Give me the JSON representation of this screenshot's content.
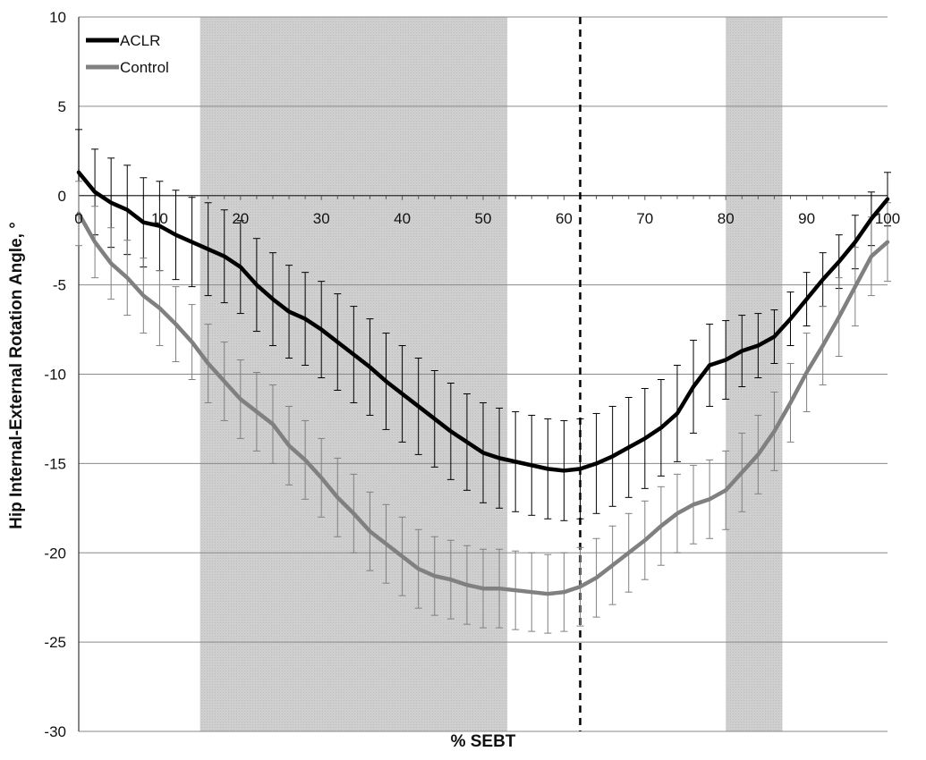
{
  "chart_data": {
    "type": "line",
    "title": "",
    "xlabel": "% SEBT",
    "ylabel": "Hip Internal-External Rotation Angle, °",
    "xlim": [
      0,
      100
    ],
    "ylim": [
      -30,
      10
    ],
    "x_ticks": [
      0,
      10,
      20,
      30,
      40,
      50,
      60,
      70,
      80,
      90,
      100
    ],
    "y_ticks": [
      10,
      5,
      0,
      -5,
      -10,
      -15,
      -20,
      -25,
      -30
    ],
    "y_tick_labels": [
      "10",
      "5",
      "0",
      "-5",
      "-10",
      "-15",
      "-20",
      "-25",
      "-30"
    ],
    "x_tick_labels": [
      "0",
      "10",
      "20",
      "30",
      "40",
      "50",
      "60",
      "70",
      "80",
      "90",
      "100"
    ],
    "grid": "horizontal",
    "legend_position": "top-left",
    "shaded_regions": [
      [
        15,
        53
      ],
      [
        80,
        87
      ]
    ],
    "vertical_marker": 62,
    "x": [
      0,
      2,
      4,
      6,
      8,
      10,
      12,
      14,
      16,
      18,
      20,
      22,
      24,
      26,
      28,
      30,
      32,
      34,
      36,
      38,
      40,
      42,
      44,
      46,
      48,
      50,
      52,
      54,
      56,
      58,
      60,
      62,
      64,
      66,
      68,
      70,
      72,
      74,
      76,
      78,
      80,
      82,
      84,
      86,
      88,
      90,
      92,
      94,
      96,
      98,
      100
    ],
    "series": [
      {
        "name": "ACLR",
        "color": "#000000",
        "values": [
          1.3,
          0.2,
          -0.4,
          -0.8,
          -1.5,
          -1.7,
          -2.2,
          -2.6,
          -3.0,
          -3.4,
          -4.0,
          -5.0,
          -5.8,
          -6.5,
          -6.9,
          -7.5,
          -8.2,
          -8.9,
          -9.6,
          -10.4,
          -11.1,
          -11.8,
          -12.5,
          -13.2,
          -13.8,
          -14.4,
          -14.7,
          -14.9,
          -15.1,
          -15.3,
          -15.4,
          -15.3,
          -15.0,
          -14.6,
          -14.1,
          -13.6,
          -13.0,
          -12.2,
          -10.7,
          -9.5,
          -9.2,
          -8.7,
          -8.4,
          -7.9,
          -6.9,
          -5.8,
          -4.7,
          -3.7,
          -2.6,
          -1.3,
          -0.2
        ],
        "errors": [
          2.4,
          2.4,
          2.5,
          2.5,
          2.5,
          2.5,
          2.5,
          2.5,
          2.6,
          2.6,
          2.6,
          2.6,
          2.6,
          2.6,
          2.6,
          2.7,
          2.7,
          2.7,
          2.7,
          2.7,
          2.7,
          2.7,
          2.7,
          2.7,
          2.7,
          2.8,
          2.8,
          2.8,
          2.8,
          2.8,
          2.8,
          2.8,
          2.8,
          2.8,
          2.8,
          2.8,
          2.7,
          2.7,
          2.6,
          2.3,
          2.2,
          2.0,
          1.8,
          1.5,
          1.5,
          1.5,
          1.5,
          1.5,
          1.5,
          1.5,
          1.5
        ]
      },
      {
        "name": "Control",
        "color": "#808080",
        "values": [
          -1.0,
          -2.6,
          -3.8,
          -4.6,
          -5.6,
          -6.3,
          -7.2,
          -8.2,
          -9.4,
          -10.4,
          -11.4,
          -12.1,
          -12.8,
          -14.0,
          -14.8,
          -15.8,
          -16.9,
          -17.8,
          -18.8,
          -19.5,
          -20.2,
          -20.9,
          -21.3,
          -21.5,
          -21.8,
          -22.0,
          -22.0,
          -22.1,
          -22.2,
          -22.3,
          -22.2,
          -21.9,
          -21.4,
          -20.7,
          -20.0,
          -19.3,
          -18.5,
          -17.8,
          -17.3,
          -17.0,
          -16.5,
          -15.5,
          -14.5,
          -13.2,
          -11.6,
          -9.9,
          -8.4,
          -6.8,
          -5.1,
          -3.4,
          -2.6
        ],
        "errors": [
          1.8,
          2.0,
          2.0,
          2.1,
          2.1,
          2.1,
          2.1,
          2.1,
          2.2,
          2.2,
          2.2,
          2.2,
          2.2,
          2.2,
          2.2,
          2.2,
          2.2,
          2.2,
          2.2,
          2.2,
          2.2,
          2.2,
          2.2,
          2.2,
          2.2,
          2.2,
          2.2,
          2.2,
          2.2,
          2.2,
          2.2,
          2.2,
          2.2,
          2.2,
          2.2,
          2.2,
          2.2,
          2.2,
          2.2,
          2.2,
          2.2,
          2.2,
          2.2,
          2.2,
          2.2,
          2.2,
          2.2,
          2.2,
          2.2,
          2.2,
          2.2
        ]
      }
    ]
  }
}
